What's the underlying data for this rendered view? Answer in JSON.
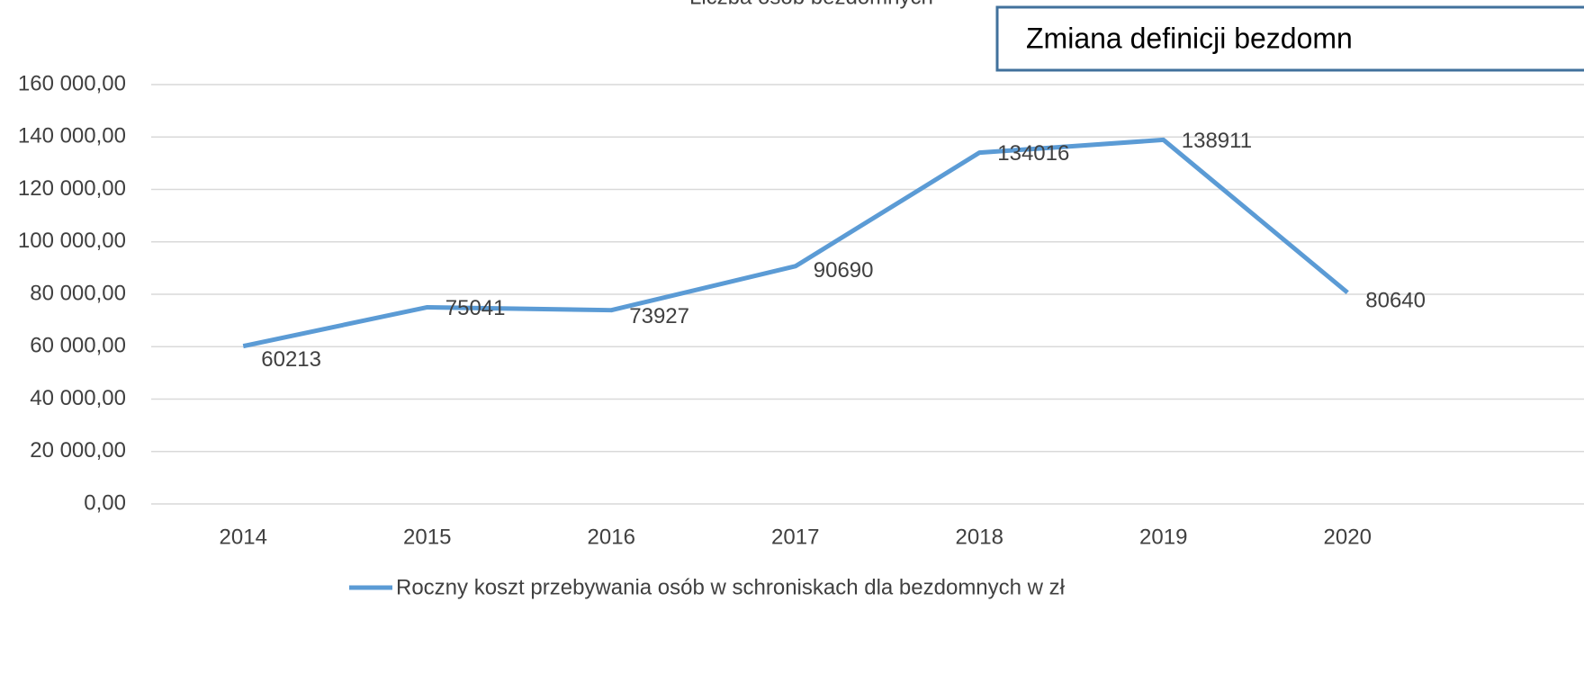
{
  "chart_data": {
    "type": "line",
    "categories": [
      "2014",
      "2015",
      "2016",
      "2017",
      "2018",
      "2019",
      "2020"
    ],
    "series": [
      {
        "name": "Roczny koszt przebywania osób w schroniskach dla bezdomnych w zł",
        "color": "#5b9bd5",
        "values": [
          60213,
          75041,
          73927,
          90690,
          134016,
          138911,
          80640
        ]
      },
      {
        "name": "Liczba osób bezdomnych",
        "color": "#d9d9d9",
        "values": [
          null,
          null,
          null,
          null,
          null,
          null,
          null
        ]
      }
    ],
    "annotations": [
      "Zmiana definicji bezdomn"
    ],
    "ylim": [
      0,
      160000
    ],
    "yticks": [
      {
        "value": 0,
        "label": "0,00"
      },
      {
        "value": 20000,
        "label": "20 000,00"
      },
      {
        "value": 40000,
        "label": "40 000,00"
      },
      {
        "value": 60000,
        "label": "60 000,00"
      },
      {
        "value": 80000,
        "label": "80 000,00"
      },
      {
        "value": 100000,
        "label": "100 000,00"
      },
      {
        "value": 120000,
        "label": "120 000,00"
      },
      {
        "value": 140000,
        "label": "140 000,00"
      },
      {
        "value": 160000,
        "label": "160 000,00"
      }
    ],
    "grid": true
  }
}
